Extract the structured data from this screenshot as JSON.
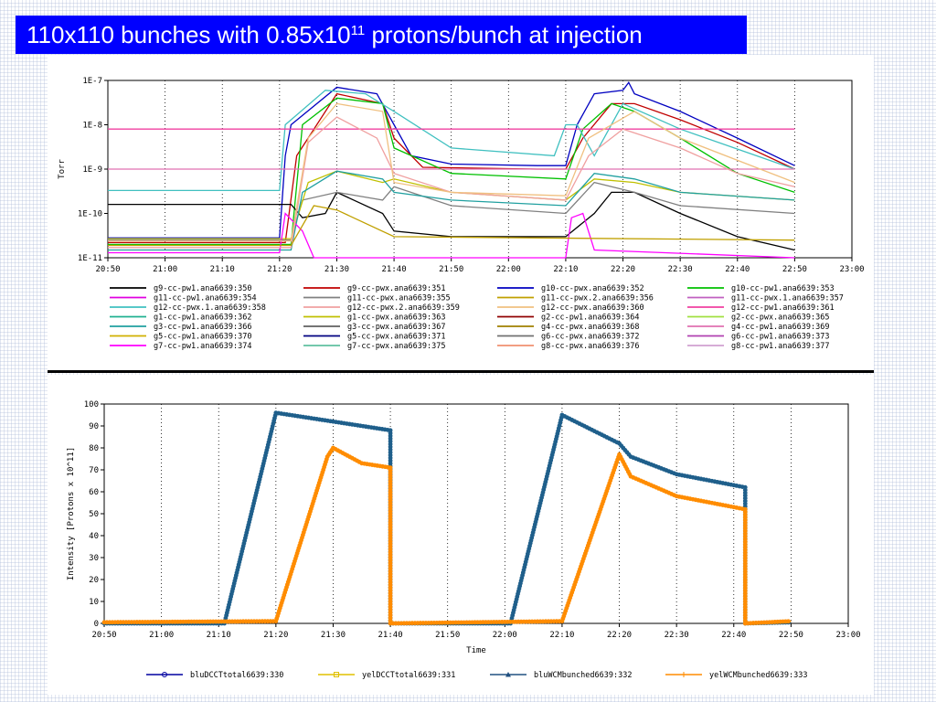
{
  "slide": {
    "title_main": "110x110 bunches with 0.85x10",
    "title_sup": "11",
    "title_tail": " protons/bunch at injection"
  },
  "chart_data": [
    {
      "type": "line",
      "y_scale": "log",
      "ylabel": "Torr",
      "xlabel": "",
      "ylim": [
        1e-11,
        1e-07
      ],
      "y_ticks": [
        "1E-7",
        "1E-8",
        "1E-9",
        "1E-10",
        "1E-11"
      ],
      "x_ticks": [
        "20:50",
        "21:00",
        "21:10",
        "21:20",
        "21:30",
        "21:40",
        "21:50",
        "22:00",
        "22:10",
        "22:20",
        "22:30",
        "22:40",
        "22:50",
        "23:00"
      ],
      "grid": true,
      "legend_position": "bottom",
      "legend": [
        {
          "name": "g9-cc-pw1.ana6639:350",
          "color": "#000000"
        },
        {
          "name": "g9-cc-pwx.ana6639:351",
          "color": "#c00000"
        },
        {
          "name": "g10-cc-pwx.ana6639:352",
          "color": "#0000c0"
        },
        {
          "name": "g10-cc-pw1.ana6639:353",
          "color": "#00c000"
        },
        {
          "name": "g11-cc-pw1.ana6639:354",
          "color": "#e000e0"
        },
        {
          "name": "g11-cc-pwx.ana6639:355",
          "color": "#808080"
        },
        {
          "name": "g11-cc-pwx.2.ana6639:356",
          "color": "#c0a000"
        },
        {
          "name": "g11-cc-pwx.1.ana6639:357",
          "color": "#c060c0"
        },
        {
          "name": "g12-cc-pwx.1.ana6639:358",
          "color": "#40c0c0"
        },
        {
          "name": "g12-cc-pwx.2.ana6639:359",
          "color": "#f0a0a0"
        },
        {
          "name": "g12-cc-pwx.ana6639:360",
          "color": "#f0c080"
        },
        {
          "name": "g12-cc-pw1.ana6639:361",
          "color": "#f040a0"
        },
        {
          "name": "g1-cc-pw1.ana6639:362",
          "color": "#20b090"
        },
        {
          "name": "g1-cc-pwx.ana6639:363",
          "color": "#c0c000"
        },
        {
          "name": "g2-cc-pw1.ana6639:364",
          "color": "#900000"
        },
        {
          "name": "g2-cc-pwx.ana6639:365",
          "color": "#a0e040"
        },
        {
          "name": "g3-cc-pw1.ana6639:366",
          "color": "#20a0a0"
        },
        {
          "name": "g3-cc-pwx.ana6639:367",
          "color": "#606060"
        },
        {
          "name": "g4-cc-pwx.ana6639:368",
          "color": "#a08000"
        },
        {
          "name": "g4-cc-pw1.ana6639:369",
          "color": "#e070b0"
        },
        {
          "name": "g5-cc-pw1.ana6639:370",
          "color": "#d0b000"
        },
        {
          "name": "g5-cc-pwx.ana6639:371",
          "color": "#000080"
        },
        {
          "name": "g6-cc-pwx.ana6639:372",
          "color": "#707070"
        },
        {
          "name": "g6-cc-pw1.ana6639:373",
          "color": "#b040b0"
        },
        {
          "name": "g7-cc-pw1.ana6639:374",
          "color": "#ff00ff"
        },
        {
          "name": "g7-cc-pwx.ana6639:375",
          "color": "#60c0a0"
        },
        {
          "name": "g8-cc-pwx.ana6639:376",
          "color": "#f09070"
        },
        {
          "name": "g8-cc-pw1.ana6639:377",
          "color": "#d0a0d0"
        }
      ],
      "series": [
        {
          "color": "#0000c0",
          "points": [
            [
              "20:50",
              2.8e-11
            ],
            [
              "21:20",
              2.8e-11
            ],
            [
              "21:21",
              2e-09
            ],
            [
              "21:22",
              1e-08
            ],
            [
              "21:30",
              7e-08
            ],
            [
              "21:37",
              5e-08
            ],
            [
              "21:40",
              1e-08
            ],
            [
              "21:43",
              2e-09
            ],
            [
              "21:50",
              1.3e-09
            ],
            [
              "22:05",
              1.2e-09
            ],
            [
              "22:10",
              1.2e-09
            ],
            [
              "22:12",
              1e-08
            ],
            [
              "22:15",
              5e-08
            ],
            [
              "22:20",
              6e-08
            ],
            [
              "22:21",
              9e-08
            ],
            [
              "22:22",
              5e-08
            ],
            [
              "22:30",
              2e-08
            ],
            [
              "22:40",
              5e-09
            ],
            [
              "22:50",
              1.2e-09
            ]
          ]
        },
        {
          "color": "#c00000",
          "points": [
            [
              "20:50",
              2.2e-11
            ],
            [
              "21:21",
              2.2e-11
            ],
            [
              "21:23",
              2e-09
            ],
            [
              "21:30",
              5e-08
            ],
            [
              "21:38",
              3e-08
            ],
            [
              "21:40",
              5e-09
            ],
            [
              "21:45",
              1.1e-09
            ],
            [
              "22:05",
              1e-09
            ],
            [
              "22:10",
              1e-09
            ],
            [
              "22:13",
              5e-09
            ],
            [
              "22:18",
              3e-08
            ],
            [
              "22:22",
              3e-08
            ],
            [
              "22:30",
              1.3e-08
            ],
            [
              "22:40",
              4e-09
            ],
            [
              "22:50",
              1e-09
            ]
          ]
        },
        {
          "color": "#00c000",
          "points": [
            [
              "20:50",
              2e-11
            ],
            [
              "21:22",
              2e-11
            ],
            [
              "21:24",
              1e-08
            ],
            [
              "21:30",
              4e-08
            ],
            [
              "21:38",
              3e-08
            ],
            [
              "21:40",
              3e-09
            ],
            [
              "21:50",
              8e-10
            ],
            [
              "22:10",
              6e-10
            ],
            [
              "22:13",
              8e-09
            ],
            [
              "22:18",
              3e-08
            ],
            [
              "22:22",
              2e-08
            ],
            [
              "22:30",
              5e-09
            ],
            [
              "22:40",
              8e-10
            ],
            [
              "22:50",
              3e-10
            ]
          ]
        },
        {
          "color": "#40c0c0",
          "points": [
            [
              "20:50",
              3.3e-10
            ],
            [
              "21:20",
              3.3e-10
            ],
            [
              "21:21",
              1e-08
            ],
            [
              "21:28",
              6e-08
            ],
            [
              "21:35",
              5e-08
            ],
            [
              "21:40",
              2e-08
            ],
            [
              "21:50",
              3e-09
            ],
            [
              "22:08",
              2e-09
            ],
            [
              "22:10",
              1e-08
            ],
            [
              "22:12",
              1e-08
            ],
            [
              "22:15",
              2e-09
            ],
            [
              "22:20",
              3e-08
            ],
            [
              "22:30",
              8e-09
            ],
            [
              "22:50",
              1e-09
            ]
          ]
        },
        {
          "color": "#f040a0",
          "points": [
            [
              "20:50",
              8e-09
            ],
            [
              "22:50",
              8e-09
            ]
          ]
        },
        {
          "color": "#e070b0",
          "points": [
            [
              "20:50",
              1e-09
            ],
            [
              "22:50",
              1e-09
            ]
          ]
        },
        {
          "color": "#000000",
          "points": [
            [
              "20:50",
              1.6e-10
            ],
            [
              "21:22",
              1.6e-10
            ],
            [
              "21:24",
              8e-11
            ],
            [
              "21:28",
              1e-10
            ],
            [
              "21:30",
              3e-10
            ],
            [
              "21:38",
              1e-10
            ],
            [
              "21:40",
              4e-11
            ],
            [
              "21:50",
              3e-11
            ],
            [
              "22:10",
              3e-11
            ],
            [
              "22:15",
              1e-10
            ],
            [
              "22:18",
              3e-10
            ],
            [
              "22:22",
              3e-10
            ],
            [
              "22:30",
              1e-10
            ],
            [
              "22:40",
              3e-11
            ],
            [
              "22:50",
              1.5e-11
            ]
          ]
        },
        {
          "color": "#808080",
          "points": [
            [
              "20:50",
              2.5e-11
            ],
            [
              "21:22",
              2.5e-11
            ],
            [
              "21:24",
              2e-10
            ],
            [
              "21:30",
              3e-10
            ],
            [
              "21:38",
              2e-10
            ],
            [
              "21:40",
              4e-10
            ],
            [
              "21:50",
              1.5e-10
            ],
            [
              "22:10",
              1e-10
            ],
            [
              "22:15",
              5e-10
            ],
            [
              "22:22",
              3e-10
            ],
            [
              "22:30",
              1.5e-10
            ],
            [
              "22:50",
              1e-10
            ]
          ]
        },
        {
          "color": "#c0c000",
          "points": [
            [
              "20:50",
              2.7e-11
            ],
            [
              "21:22",
              2.7e-11
            ],
            [
              "21:25",
              5e-10
            ],
            [
              "21:30",
              9e-10
            ],
            [
              "21:38",
              5e-10
            ],
            [
              "21:40",
              6e-10
            ],
            [
              "21:50",
              3e-10
            ],
            [
              "22:10",
              2e-10
            ],
            [
              "22:15",
              6e-10
            ],
            [
              "22:22",
              5e-10
            ],
            [
              "22:30",
              3e-10
            ],
            [
              "22:50",
              2e-10
            ]
          ]
        },
        {
          "color": "#20a0a0",
          "points": [
            [
              "20:50",
              1.5e-11
            ],
            [
              "21:22",
              1.5e-11
            ],
            [
              "21:24",
              3e-10
            ],
            [
              "21:30",
              9e-10
            ],
            [
              "21:38",
              6e-10
            ],
            [
              "21:40",
              3e-10
            ],
            [
              "21:50",
              2e-10
            ],
            [
              "22:10",
              1.5e-10
            ],
            [
              "22:15",
              8e-10
            ],
            [
              "22:22",
              6e-10
            ],
            [
              "22:30",
              3e-10
            ],
            [
              "22:50",
              2e-10
            ]
          ]
        },
        {
          "color": "#ff00ff",
          "points": [
            [
              "20:50",
              1.3e-11
            ],
            [
              "21:20",
              1.3e-11
            ],
            [
              "21:21",
              1e-10
            ],
            [
              "21:24",
              4e-11
            ],
            [
              "21:26",
              1e-11
            ],
            [
              "22:10",
              1e-11
            ],
            [
              "22:11",
              8e-11
            ],
            [
              "22:13",
              1e-10
            ],
            [
              "22:15",
              1.5e-11
            ],
            [
              "22:50",
              1e-11
            ]
          ]
        },
        {
          "color": "#f0a0a0",
          "points": [
            [
              "20:50",
              1.7e-11
            ],
            [
              "21:22",
              1.7e-11
            ],
            [
              "21:25",
              4e-09
            ],
            [
              "21:30",
              1.5e-08
            ],
            [
              "21:37",
              5e-09
            ],
            [
              "21:40",
              8e-10
            ],
            [
              "21:50",
              3e-10
            ],
            [
              "22:10",
              2e-10
            ],
            [
              "22:14",
              2e-09
            ],
            [
              "22:20",
              8e-09
            ],
            [
              "22:30",
              3e-09
            ],
            [
              "22:40",
              8e-10
            ],
            [
              "22:50",
              4e-10
            ]
          ]
        },
        {
          "color": "#f0c080",
          "points": [
            [
              "20:50",
              2.4e-11
            ],
            [
              "21:22",
              2.4e-11
            ],
            [
              "21:25",
              5e-09
            ],
            [
              "21:30",
              3e-08
            ],
            [
              "21:38",
              2e-08
            ],
            [
              "21:40",
              5e-10
            ],
            [
              "21:50",
              3e-10
            ],
            [
              "22:10",
              2.5e-10
            ],
            [
              "22:14",
              5e-09
            ],
            [
              "22:22",
              2e-08
            ],
            [
              "22:30",
              5e-09
            ],
            [
              "22:50",
              5e-10
            ]
          ]
        },
        {
          "color": "#c0a000",
          "points": [
            [
              "20:50",
              1.9e-11
            ],
            [
              "21:22",
              1.9e-11
            ],
            [
              "21:26",
              1.5e-10
            ],
            [
              "21:30",
              1.2e-10
            ],
            [
              "21:40",
              3e-11
            ],
            [
              "22:50",
              2.5e-11
            ]
          ]
        }
      ]
    },
    {
      "type": "line",
      "xlabel": "Time",
      "ylabel": "Intensity [Protons x 10^11]",
      "ylim": [
        0,
        100
      ],
      "y_ticks": [
        "100",
        "90",
        "80",
        "70",
        "60",
        "50",
        "40",
        "30",
        "20",
        "10",
        "0"
      ],
      "x_ticks": [
        "20:50",
        "21:00",
        "21:10",
        "21:20",
        "21:30",
        "21:40",
        "21:50",
        "22:00",
        "22:10",
        "22:20",
        "22:30",
        "22:40",
        "22:50",
        "23:00"
      ],
      "grid": true,
      "legend_position": "bottom",
      "legend": [
        {
          "name": "bluDCCTtotal6639:330",
          "color": "#0000a0",
          "marker": "circle"
        },
        {
          "name": "yelDCCTtotal6639:331",
          "color": "#e0c000",
          "marker": "square"
        },
        {
          "name": "bluWCMbunched6639:332",
          "color": "#205080",
          "marker": "triangle"
        },
        {
          "name": "yelWCMbunched6639:333",
          "color": "#ff8c00",
          "marker": "plus"
        }
      ],
      "series": [
        {
          "name": "bluWCMbunched6639:332",
          "color": "#1f5f8b",
          "points": [
            [
              "20:50",
              0
            ],
            [
              "21:11",
              0
            ],
            [
              "21:20",
              96
            ],
            [
              "21:30",
              92
            ],
            [
              "21:40",
              88
            ],
            [
              "21:40",
              0
            ],
            [
              "22:01",
              0
            ],
            [
              "22:10",
              95
            ],
            [
              "22:20",
              82
            ],
            [
              "22:22",
              76
            ],
            [
              "22:30",
              68
            ],
            [
              "22:40",
              63
            ],
            [
              "22:42",
              62
            ],
            [
              "22:42",
              0
            ],
            [
              "22:50",
              0.5
            ]
          ]
        },
        {
          "name": "yelWCMbunched6639:333",
          "color": "#ff8c00",
          "points": [
            [
              "20:50",
              0.5
            ],
            [
              "21:20",
              1
            ],
            [
              "21:29",
              76
            ],
            [
              "21:30",
              80
            ],
            [
              "21:35",
              73
            ],
            [
              "21:40",
              71
            ],
            [
              "21:40",
              0
            ],
            [
              "22:10",
              1
            ],
            [
              "22:20",
              77
            ],
            [
              "22:22",
              67
            ],
            [
              "22:30",
              58
            ],
            [
              "22:40",
              53
            ],
            [
              "22:42",
              52
            ],
            [
              "22:42",
              0
            ],
            [
              "22:50",
              1
            ]
          ]
        }
      ]
    }
  ]
}
